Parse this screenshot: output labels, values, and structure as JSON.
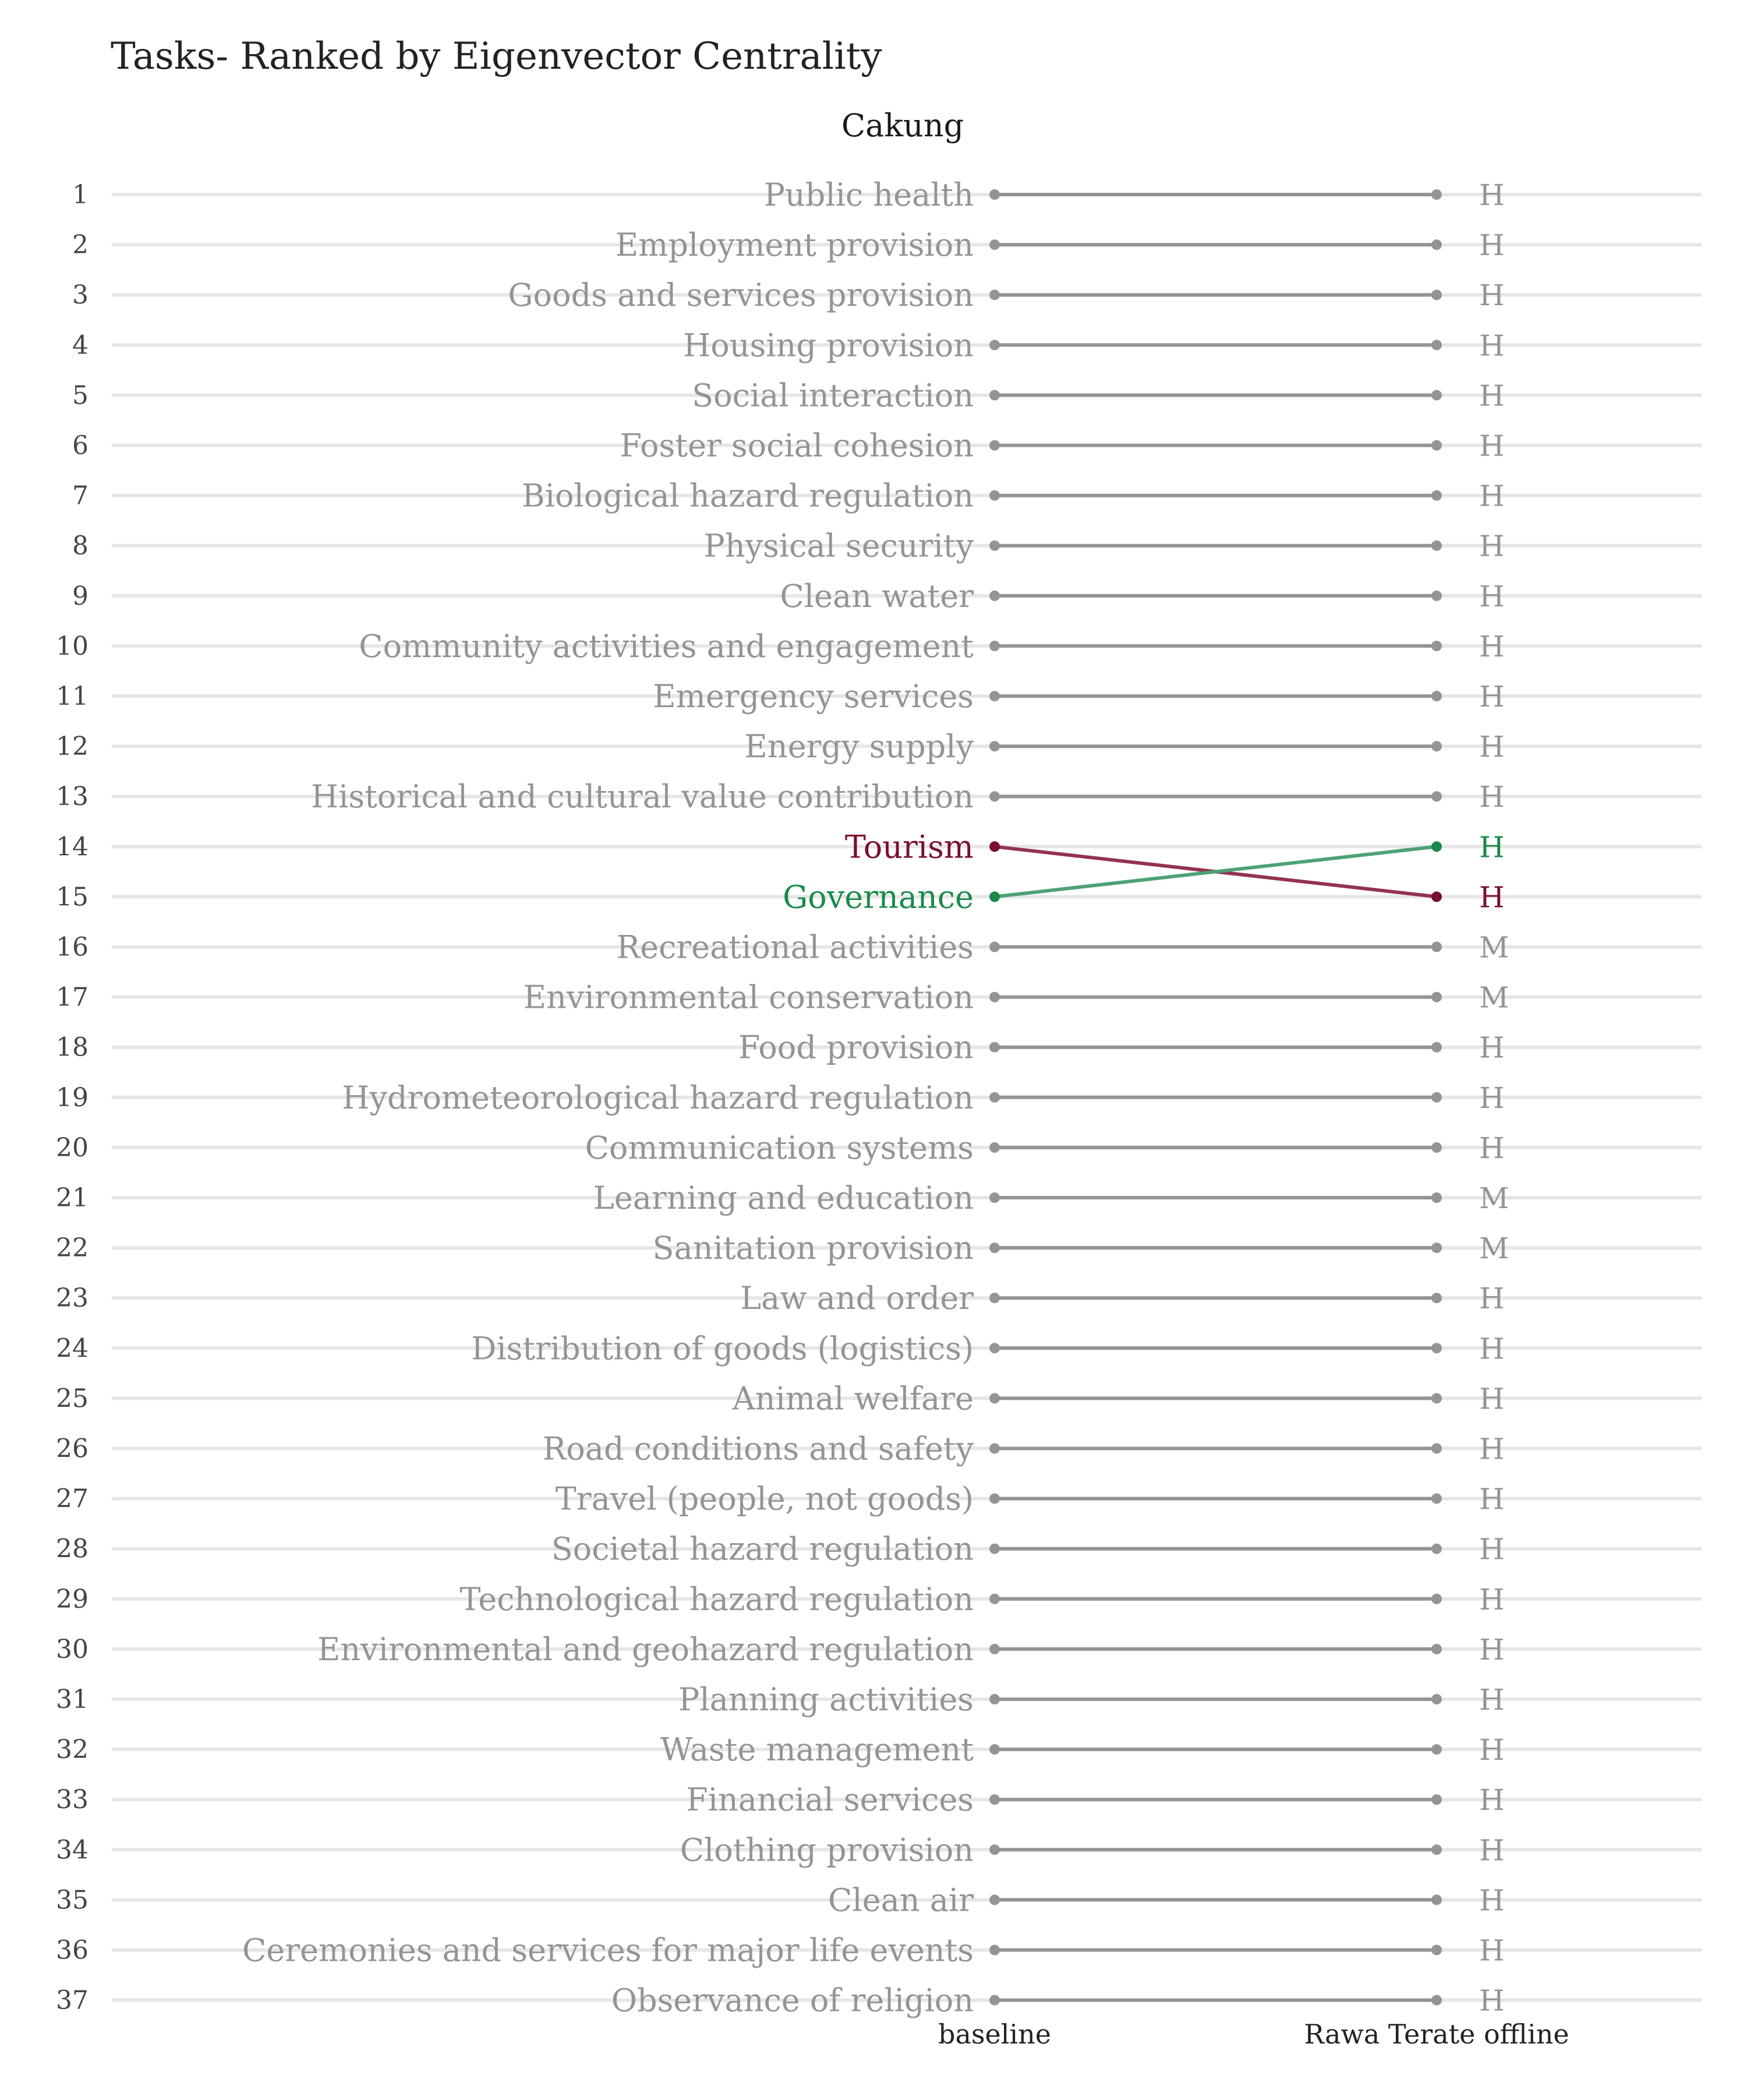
{
  "chart_data": {
    "type": "slope",
    "title": "Tasks- Ranked by Eigenvector Centrality",
    "subtitle": "Cakung",
    "x_categories": [
      "baseline",
      "Rawa Terate offline"
    ],
    "ranks": [
      1,
      2,
      3,
      4,
      5,
      6,
      7,
      8,
      9,
      10,
      11,
      12,
      13,
      14,
      15,
      16,
      17,
      18,
      19,
      20,
      21,
      22,
      23,
      24,
      25,
      26,
      27,
      28,
      29,
      30,
      31,
      32,
      33,
      34,
      35,
      36,
      37
    ],
    "tasks": [
      {
        "name": "Public health",
        "baseline_rank": 1,
        "scenario_rank": 1,
        "level": "H",
        "status": "unchanged"
      },
      {
        "name": "Employment provision",
        "baseline_rank": 2,
        "scenario_rank": 2,
        "level": "H",
        "status": "unchanged"
      },
      {
        "name": "Goods and services provision",
        "baseline_rank": 3,
        "scenario_rank": 3,
        "level": "H",
        "status": "unchanged"
      },
      {
        "name": "Housing provision",
        "baseline_rank": 4,
        "scenario_rank": 4,
        "level": "H",
        "status": "unchanged"
      },
      {
        "name": "Social interaction",
        "baseline_rank": 5,
        "scenario_rank": 5,
        "level": "H",
        "status": "unchanged"
      },
      {
        "name": "Foster social cohesion",
        "baseline_rank": 6,
        "scenario_rank": 6,
        "level": "H",
        "status": "unchanged"
      },
      {
        "name": "Biological hazard regulation",
        "baseline_rank": 7,
        "scenario_rank": 7,
        "level": "H",
        "status": "unchanged"
      },
      {
        "name": "Physical security",
        "baseline_rank": 8,
        "scenario_rank": 8,
        "level": "H",
        "status": "unchanged"
      },
      {
        "name": "Clean water",
        "baseline_rank": 9,
        "scenario_rank": 9,
        "level": "H",
        "status": "unchanged"
      },
      {
        "name": "Community activities and engagement",
        "baseline_rank": 10,
        "scenario_rank": 10,
        "level": "H",
        "status": "unchanged"
      },
      {
        "name": "Emergency services",
        "baseline_rank": 11,
        "scenario_rank": 11,
        "level": "H",
        "status": "unchanged"
      },
      {
        "name": "Energy supply",
        "baseline_rank": 12,
        "scenario_rank": 12,
        "level": "H",
        "status": "unchanged"
      },
      {
        "name": "Historical and cultural value contribution",
        "baseline_rank": 13,
        "scenario_rank": 13,
        "level": "H",
        "status": "unchanged"
      },
      {
        "name": "Tourism",
        "baseline_rank": 14,
        "scenario_rank": 15,
        "level": "H",
        "status": "down"
      },
      {
        "name": "Governance",
        "baseline_rank": 15,
        "scenario_rank": 14,
        "level": "H",
        "status": "up"
      },
      {
        "name": "Recreational activities",
        "baseline_rank": 16,
        "scenario_rank": 16,
        "level": "M",
        "status": "unchanged"
      },
      {
        "name": "Environmental conservation",
        "baseline_rank": 17,
        "scenario_rank": 17,
        "level": "M",
        "status": "unchanged"
      },
      {
        "name": "Food provision",
        "baseline_rank": 18,
        "scenario_rank": 18,
        "level": "H",
        "status": "unchanged"
      },
      {
        "name": "Hydrometeorological hazard regulation",
        "baseline_rank": 19,
        "scenario_rank": 19,
        "level": "H",
        "status": "unchanged"
      },
      {
        "name": "Communication systems",
        "baseline_rank": 20,
        "scenario_rank": 20,
        "level": "H",
        "status": "unchanged"
      },
      {
        "name": "Learning and education",
        "baseline_rank": 21,
        "scenario_rank": 21,
        "level": "M",
        "status": "unchanged"
      },
      {
        "name": "Sanitation provision",
        "baseline_rank": 22,
        "scenario_rank": 22,
        "level": "M",
        "status": "unchanged"
      },
      {
        "name": "Law and order",
        "baseline_rank": 23,
        "scenario_rank": 23,
        "level": "H",
        "status": "unchanged"
      },
      {
        "name": "Distribution of goods (logistics)",
        "baseline_rank": 24,
        "scenario_rank": 24,
        "level": "H",
        "status": "unchanged"
      },
      {
        "name": "Animal welfare",
        "baseline_rank": 25,
        "scenario_rank": 25,
        "level": "H",
        "status": "unchanged"
      },
      {
        "name": "Road conditions and safety",
        "baseline_rank": 26,
        "scenario_rank": 26,
        "level": "H",
        "status": "unchanged"
      },
      {
        "name": "Travel (people, not goods)",
        "baseline_rank": 27,
        "scenario_rank": 27,
        "level": "H",
        "status": "unchanged"
      },
      {
        "name": "Societal hazard regulation",
        "baseline_rank": 28,
        "scenario_rank": 28,
        "level": "H",
        "status": "unchanged"
      },
      {
        "name": "Technological hazard regulation",
        "baseline_rank": 29,
        "scenario_rank": 29,
        "level": "H",
        "status": "unchanged"
      },
      {
        "name": "Environmental and geohazard regulation",
        "baseline_rank": 30,
        "scenario_rank": 30,
        "level": "H",
        "status": "unchanged"
      },
      {
        "name": "Planning activities",
        "baseline_rank": 31,
        "scenario_rank": 31,
        "level": "H",
        "status": "unchanged"
      },
      {
        "name": "Waste management",
        "baseline_rank": 32,
        "scenario_rank": 32,
        "level": "H",
        "status": "unchanged"
      },
      {
        "name": "Financial services",
        "baseline_rank": 33,
        "scenario_rank": 33,
        "level": "H",
        "status": "unchanged"
      },
      {
        "name": "Clothing provision",
        "baseline_rank": 34,
        "scenario_rank": 34,
        "level": "H",
        "status": "unchanged"
      },
      {
        "name": "Clean air",
        "baseline_rank": 35,
        "scenario_rank": 35,
        "level": "H",
        "status": "unchanged"
      },
      {
        "name": "Ceremonies and services for major life events",
        "baseline_rank": 36,
        "scenario_rank": 36,
        "level": "H",
        "status": "unchanged"
      },
      {
        "name": "Observance of religion",
        "baseline_rank": 37,
        "scenario_rank": 37,
        "level": "H",
        "status": "unchanged"
      }
    ],
    "grid": true,
    "colors": {
      "unchanged": "#949494",
      "up": "#1a8a4a",
      "down": "#7a0f2e",
      "up_line": "#4da274",
      "down_line": "#93334f",
      "grid": "#e6e6e6"
    }
  }
}
